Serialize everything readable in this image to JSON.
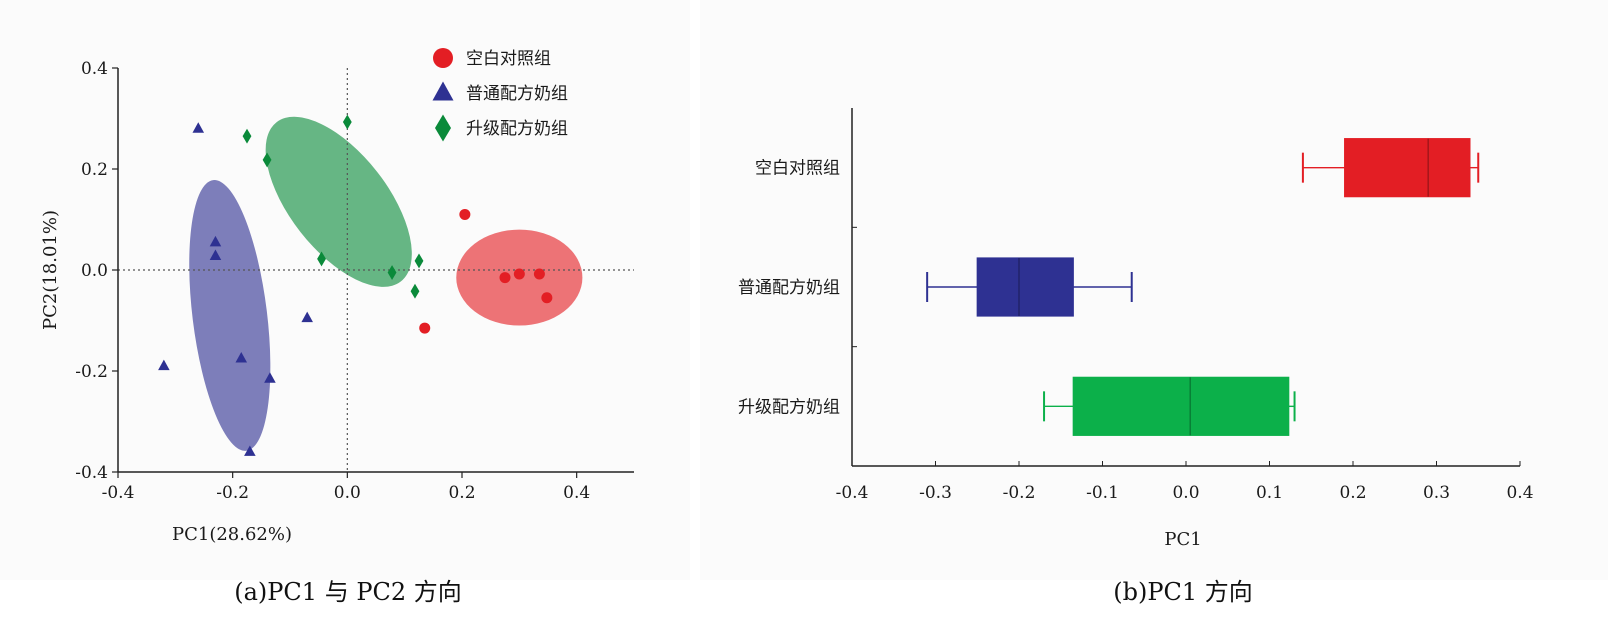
{
  "captions": {
    "a": "(a)PC1 与 PC2 方向",
    "b": "(b)PC1 方向"
  },
  "colors": {
    "blank": "#e31e24",
    "normal": "#2e3192",
    "upgrade": "#0a8a3a",
    "upgrade_box": "#0cb04a"
  },
  "chart_data": [
    {
      "type": "scatter",
      "title": "",
      "xlabel": "PC1(28.62%)",
      "ylabel": "PC2(18.01%)",
      "xlim": [
        -0.4,
        0.5
      ],
      "ylim": [
        -0.4,
        0.4
      ],
      "xticks": [
        -0.4,
        -0.2,
        0.0,
        0.2,
        0.4
      ],
      "yticks": [
        -0.4,
        -0.2,
        0.0,
        0.2,
        0.4
      ],
      "xtick_labels": [
        "-0.4",
        "-0.2",
        "0.0",
        "0.2",
        "0.4"
      ],
      "ytick_labels": [
        "-0.4",
        "-0.2",
        "0.0",
        "0.2",
        "0.4"
      ],
      "reference_lines": {
        "x": 0,
        "y": 0,
        "style": "dotted"
      },
      "legend_position": "top-right",
      "series": [
        {
          "name": "空白对照组",
          "marker": "circle",
          "color": "#e31e24",
          "points": [
            [
              0.205,
              0.11
            ],
            [
              0.135,
              -0.115
            ],
            [
              0.275,
              -0.015
            ],
            [
              0.3,
              -0.008
            ],
            [
              0.335,
              -0.008
            ],
            [
              0.348,
              -0.055
            ]
          ],
          "ellipse": {
            "cx": 0.3,
            "cy": -0.015,
            "rx": 0.11,
            "ry": 0.095,
            "angle": 0
          }
        },
        {
          "name": "普通配方奶组",
          "marker": "triangle",
          "color": "#2e3192",
          "points": [
            [
              -0.26,
              0.28
            ],
            [
              -0.23,
              0.055
            ],
            [
              -0.23,
              0.028
            ],
            [
              -0.07,
              -0.095
            ],
            [
              -0.185,
              -0.175
            ],
            [
              -0.32,
              -0.19
            ],
            [
              -0.135,
              -0.215
            ],
            [
              -0.17,
              -0.36
            ]
          ],
          "ellipse": {
            "cx": -0.205,
            "cy": -0.09,
            "rx": 0.065,
            "ry": 0.27,
            "angle": -7
          }
        },
        {
          "name": "升级配方奶组",
          "marker": "diamond",
          "color": "#0a8a3a",
          "points": [
            [
              -0.175,
              0.265
            ],
            [
              0.0,
              0.293
            ],
            [
              -0.14,
              0.218
            ],
            [
              -0.045,
              0.022
            ],
            [
              0.078,
              -0.005
            ],
            [
              0.125,
              0.018
            ],
            [
              0.118,
              -0.042
            ]
          ],
          "ellipse": {
            "cx": -0.015,
            "cy": 0.135,
            "rx": 0.085,
            "ry": 0.2,
            "angle": -38
          }
        }
      ]
    },
    {
      "type": "box",
      "title": "",
      "xlabel": "PC1",
      "ylabel": "",
      "xlim": [
        -0.4,
        0.4
      ],
      "xticks": [
        -0.4,
        -0.3,
        -0.2,
        -0.1,
        0.0,
        0.1,
        0.2,
        0.3,
        0.4
      ],
      "xtick_labels": [
        "-0.4",
        "-0.3",
        "-0.2",
        "-0.1",
        "0.0",
        "0.1",
        "0.2",
        "0.3",
        "0.4"
      ],
      "orientation": "horizontal",
      "categories": [
        "空白对照组",
        "普通配方奶组",
        "升级配方奶组"
      ],
      "boxes": [
        {
          "category": "空白对照组",
          "min": 0.14,
          "q1": 0.19,
          "median": 0.29,
          "q3": 0.34,
          "max": 0.35,
          "color": "#e31e24"
        },
        {
          "category": "普通配方奶组",
          "min": -0.31,
          "q1": -0.25,
          "median": -0.2,
          "q3": -0.135,
          "max": -0.065,
          "color": "#2e3192"
        },
        {
          "category": "升级配方奶组",
          "min": -0.17,
          "q1": -0.135,
          "median": 0.005,
          "q3": 0.123,
          "max": 0.13,
          "color": "#0cb04a"
        }
      ]
    }
  ]
}
